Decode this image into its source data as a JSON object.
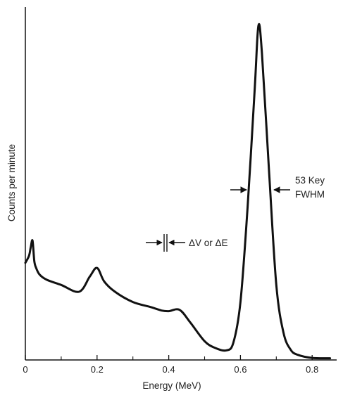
{
  "chart_data": {
    "type": "line",
    "title": "",
    "xlabel": "Energy (MeV)",
    "ylabel": "Counts per minute",
    "xlim": [
      0,
      0.88
    ],
    "ylim": [
      0,
      100
    ],
    "x_ticks": [
      "0",
      "0.2",
      "0.4",
      "0.6",
      "0.8"
    ],
    "x_tick_values": [
      0,
      0.2,
      0.4,
      0.6,
      0.8
    ],
    "x_minor_tick_values": [
      0.1,
      0.3,
      0.5,
      0.7
    ],
    "grid": false,
    "series": [
      {
        "x": [
          0,
          0.01,
          0.015,
          0.02,
          0.025,
          0.03,
          0.04,
          0.06,
          0.1,
          0.15,
          0.18,
          0.2,
          0.22,
          0.25,
          0.3,
          0.35,
          0.38,
          0.4,
          0.43,
          0.46,
          0.5,
          0.53,
          0.56,
          0.58,
          0.6,
          0.62,
          0.64,
          0.65,
          0.66,
          0.68,
          0.7,
          0.72,
          0.74,
          0.76,
          0.8,
          0.85
        ],
        "y": [
          28.5,
          30.5,
          33,
          35,
          29,
          27,
          25,
          23.5,
          22,
          20,
          24.5,
          27,
          23,
          20,
          17,
          15.5,
          14.5,
          14.3,
          14.7,
          11,
          5.5,
          3.5,
          2.8,
          5,
          17,
          45,
          80,
          98,
          90,
          55,
          22,
          8,
          3,
          1.5,
          0.6,
          0.5
        ]
      }
    ],
    "annotations": [
      {
        "text": "ΔV or ΔE",
        "x": 0.4,
        "y": 31
      },
      {
        "text": "53 Key",
        "x": 0.685,
        "y": 49
      },
      {
        "text": "FWHM",
        "x": 0.685,
        "y": 49
      }
    ]
  }
}
